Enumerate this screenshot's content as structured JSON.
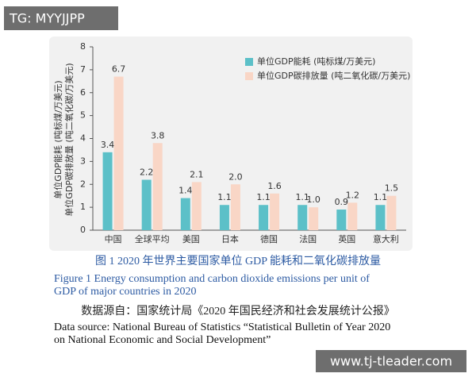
{
  "chart_data": {
    "type": "bar",
    "y_label": [
      "单位GDP能耗 (吨标煤/万美元)",
      "单位GDP碳排放量 (吨二氧化碳/万美元)"
    ],
    "categories": [
      "中国",
      "全球平均",
      "美国",
      "日本",
      "德国",
      "法国",
      "英国",
      "意大利"
    ],
    "series": [
      {
        "name": "单位GDP能耗 (吨标煤/万美元)",
        "color": "#5cc0c8",
        "values": [
          3.4,
          2.2,
          1.4,
          1.1,
          1.1,
          1.1,
          0.9,
          1.1
        ],
        "value_labels": [
          "3.4",
          "2.2",
          "1.4",
          "1.1",
          "1.1",
          "1.1",
          "0.9",
          "1.1"
        ]
      },
      {
        "name": "单位GDP碳排放量 (吨二氧化碳/万美元)",
        "color": "#f9d6c6",
        "values": [
          6.7,
          3.8,
          2.1,
          2.0,
          1.6,
          1.0,
          1.2,
          1.5
        ],
        "value_labels": [
          "6.7",
          "3.8",
          "2.1",
          "2.0",
          "1.6",
          "1.0",
          "1.2",
          "1.5"
        ]
      }
    ],
    "ylim": [
      0,
      8
    ],
    "yticks": [
      0,
      1,
      2,
      3,
      4,
      5,
      6,
      7,
      8
    ],
    "grid": false,
    "legend": "top-right"
  },
  "caption_zh": "图 1   2020 年世界主要国家单位 GDP 能耗和二氧化碳排放量",
  "caption_en": [
    "Figure 1    Energy consumption and carbon dioxide emissions per unit of",
    "GDP of major countries in 2020"
  ],
  "source_zh": "数据源自：国家统计局《2020 年国民经济和社会发展统计公报》",
  "source_en": [
    "Data source: National Bureau of Statistics “Statistical Bulletin of Year 2020",
    "on National Economic and Social Development”"
  ],
  "watermarks": [
    "TG: MYYJJPP",
    "www.tj-tleader.com"
  ]
}
